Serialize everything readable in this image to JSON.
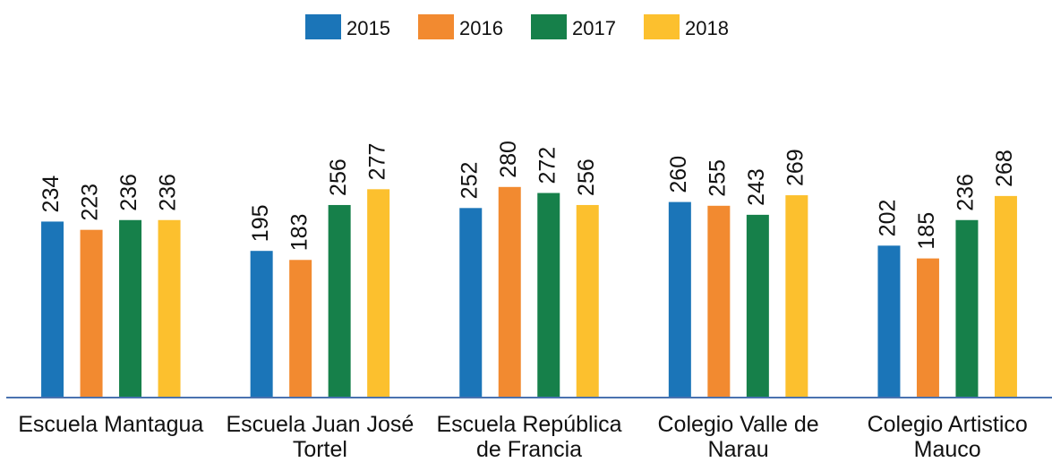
{
  "chart_data": {
    "type": "bar",
    "categories": [
      "Escuela Mantagua",
      "Escuela Juan José Tortel",
      "Escuela República de Francia",
      "Colegio Valle de Narau",
      "Colegio Artistico Mauco"
    ],
    "series": [
      {
        "name": "2015",
        "color": "#1b75b8",
        "values": [
          234,
          195,
          252,
          260,
          202
        ]
      },
      {
        "name": "2016",
        "color": "#f28a30",
        "values": [
          223,
          183,
          280,
          255,
          185
        ]
      },
      {
        "name": "2017",
        "color": "#16804a",
        "values": [
          236,
          256,
          272,
          243,
          236
        ]
      },
      {
        "name": "2018",
        "color": "#fcc02e",
        "values": [
          236,
          277,
          256,
          269,
          268
        ]
      }
    ],
    "ylim": [
      0,
      300
    ],
    "legend": "top"
  }
}
